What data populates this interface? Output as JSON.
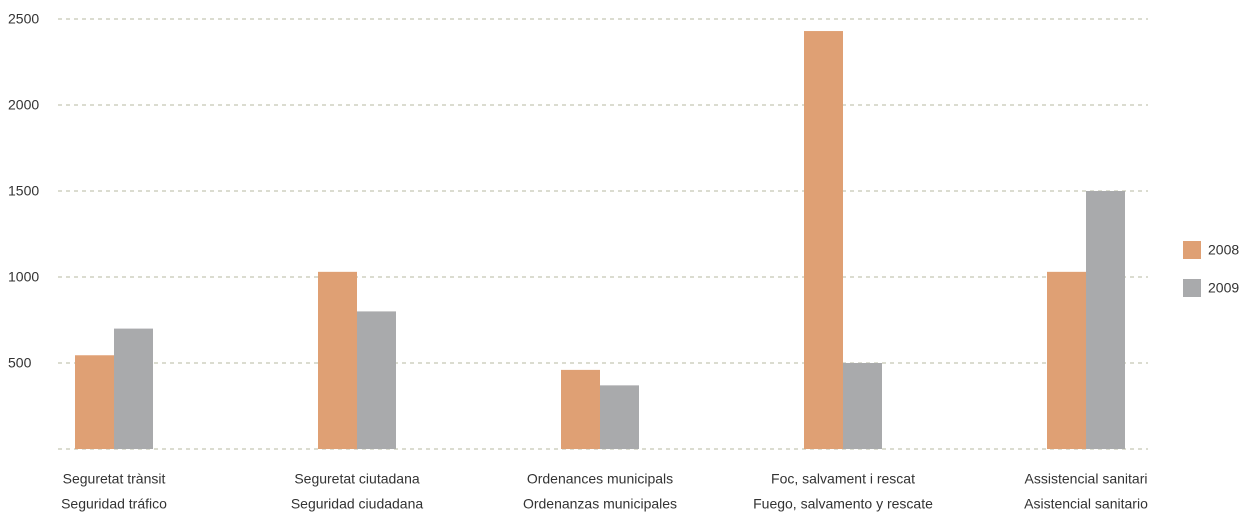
{
  "chart_data": {
    "type": "bar",
    "categories": [
      [
        "Seguretat trànsit",
        "Seguridad tráfico"
      ],
      [
        "Seguretat ciutadana",
        "Seguridad ciudadana"
      ],
      [
        "Ordenances municipals",
        "Ordenanzas municipales"
      ],
      [
        "Foc, salvament i rescat",
        "Fuego, salvamento y rescate"
      ],
      [
        "Assistencial sanitari",
        "Asistencial sanitario"
      ]
    ],
    "series": [
      {
        "name": "2008",
        "color": "#dfa074",
        "values": [
          545,
          1030,
          460,
          2430,
          1030
        ]
      },
      {
        "name": "2009",
        "color": "#a9aaac",
        "values": [
          700,
          800,
          370,
          500,
          1500
        ]
      }
    ],
    "ylim": [
      0,
      2500
    ],
    "yticks": [
      500,
      1000,
      1500,
      2000,
      2500
    ],
    "grid": true,
    "legend": "right"
  }
}
